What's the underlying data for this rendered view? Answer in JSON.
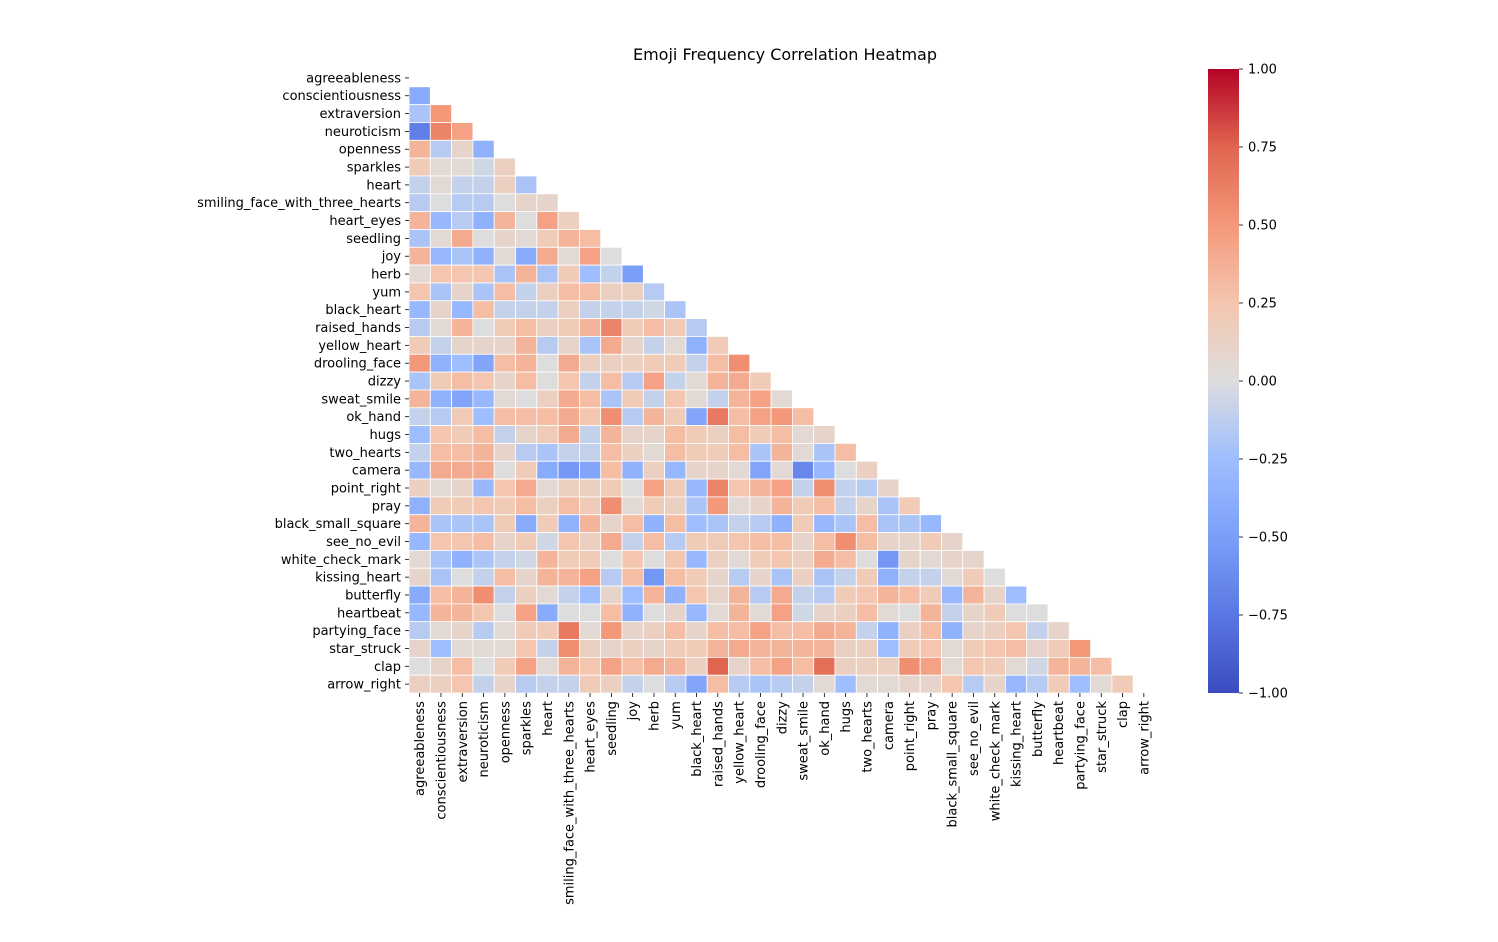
{
  "chart_data": {
    "type": "heatmap",
    "title": "Emoji Frequency Correlation Heatmap",
    "xlabel": "",
    "ylabel": "",
    "variables": [
      "agreeableness",
      "conscientiousness",
      "extraversion",
      "neuroticism",
      "openness",
      "sparkles",
      "heart",
      "smiling_face_with_three_hearts",
      "heart_eyes",
      "seedling",
      "joy",
      "herb",
      "yum",
      "black_heart",
      "raised_hands",
      "yellow_heart",
      "drooling_face",
      "dizzy",
      "sweat_smile",
      "ok_hand",
      "hugs",
      "two_hearts",
      "camera",
      "point_right",
      "pray",
      "black_small_square",
      "see_no_evil",
      "white_check_mark",
      "kissing_heart",
      "butterfly",
      "heartbeat",
      "partying_face",
      "star_struck",
      "clap",
      "arrow_right"
    ],
    "mask": "upper-triangle",
    "lower_triangle_rows": [
      [],
      [
        -0.4
      ],
      [
        -0.2,
        0.5
      ],
      [
        -0.7,
        0.6,
        0.45
      ],
      [
        0.35,
        -0.15,
        0.1,
        -0.35
      ],
      [
        0.2,
        0.05,
        0.05,
        -0.05,
        0.15
      ],
      [
        -0.1,
        0.05,
        -0.1,
        -0.1,
        0.15,
        -0.2
      ],
      [
        -0.15,
        0.0,
        -0.15,
        -0.15,
        0.0,
        0.1,
        0.1
      ],
      [
        0.35,
        -0.3,
        -0.15,
        -0.35,
        0.35,
        0.0,
        0.45,
        0.15
      ],
      [
        -0.2,
        0.05,
        0.4,
        0.0,
        0.1,
        0.05,
        0.2,
        0.35,
        0.3
      ],
      [
        0.35,
        -0.3,
        -0.2,
        -0.35,
        0.05,
        -0.4,
        0.4,
        0.05,
        0.45,
        0.0
      ],
      [
        0.05,
        0.25,
        0.25,
        0.25,
        -0.2,
        0.35,
        -0.2,
        0.2,
        -0.25,
        -0.1,
        -0.5
      ],
      [
        0.25,
        -0.2,
        0.1,
        -0.2,
        0.3,
        -0.1,
        0.15,
        0.3,
        0.3,
        0.15,
        0.15,
        -0.15
      ],
      [
        -0.3,
        0.1,
        -0.3,
        0.3,
        -0.1,
        -0.1,
        -0.1,
        0.15,
        -0.1,
        -0.1,
        -0.1,
        -0.05,
        -0.2
      ],
      [
        -0.15,
        0.05,
        0.35,
        0.0,
        0.2,
        0.3,
        0.15,
        0.2,
        0.35,
        0.6,
        0.2,
        0.3,
        0.2,
        -0.15
      ],
      [
        0.2,
        -0.1,
        0.1,
        0.1,
        0.1,
        0.35,
        -0.15,
        0.1,
        -0.2,
        0.4,
        0.1,
        -0.1,
        0.05,
        -0.35,
        0.2
      ],
      [
        0.5,
        -0.35,
        -0.25,
        -0.45,
        0.3,
        0.35,
        0.0,
        0.4,
        0.15,
        0.15,
        0.15,
        0.2,
        0.2,
        -0.1,
        0.3,
        0.55
      ],
      [
        -0.2,
        0.2,
        0.3,
        0.25,
        0.1,
        0.3,
        0.0,
        0.25,
        -0.1,
        0.3,
        -0.15,
        0.45,
        -0.1,
        0.05,
        0.35,
        0.4,
        0.2
      ],
      [
        0.35,
        -0.35,
        -0.45,
        -0.3,
        0.05,
        0.0,
        0.15,
        0.4,
        0.3,
        -0.2,
        0.2,
        -0.1,
        0.25,
        0.05,
        -0.1,
        0.35,
        0.45,
        0.05
      ],
      [
        -0.1,
        -0.15,
        0.2,
        -0.25,
        0.3,
        0.3,
        0.3,
        0.4,
        0.25,
        0.55,
        -0.15,
        0.35,
        0.2,
        -0.45,
        0.65,
        0.3,
        0.45,
        0.5,
        0.3
      ],
      [
        -0.25,
        0.25,
        0.2,
        0.3,
        -0.1,
        0.1,
        0.2,
        0.4,
        -0.1,
        0.35,
        0.1,
        0.1,
        0.3,
        0.2,
        0.15,
        0.3,
        0.2,
        0.3,
        0.05,
        0.1
      ],
      [
        -0.1,
        0.3,
        0.3,
        0.35,
        0.1,
        -0.15,
        -0.2,
        -0.1,
        -0.1,
        0.3,
        0.15,
        0.05,
        0.3,
        0.2,
        0.2,
        0.3,
        -0.2,
        0.35,
        0.05,
        -0.2,
        0.3
      ],
      [
        -0.3,
        0.4,
        0.4,
        0.4,
        0.0,
        0.2,
        -0.4,
        -0.55,
        -0.45,
        0.3,
        -0.35,
        0.15,
        -0.3,
        0.1,
        0.1,
        0.05,
        -0.45,
        0.05,
        -0.65,
        -0.3,
        0.0,
        0.15
      ],
      [
        0.15,
        0.05,
        0.1,
        -0.3,
        0.25,
        0.4,
        0.05,
        0.15,
        0.15,
        0.2,
        0.0,
        0.45,
        0.2,
        -0.3,
        0.6,
        0.25,
        0.35,
        0.45,
        -0.1,
        0.55,
        -0.1,
        -0.15,
        0.1
      ],
      [
        -0.35,
        0.2,
        0.2,
        0.25,
        0.2,
        0.3,
        0.15,
        0.3,
        0.2,
        0.55,
        0.05,
        0.2,
        0.15,
        -0.2,
        0.5,
        0.05,
        0.1,
        0.35,
        0.2,
        0.3,
        -0.1,
        0.1,
        -0.2,
        0.2
      ],
      [
        0.35,
        -0.2,
        -0.2,
        -0.2,
        0.2,
        -0.4,
        0.2,
        -0.35,
        0.35,
        0.1,
        0.3,
        -0.35,
        0.3,
        -0.25,
        -0.2,
        -0.1,
        -0.15,
        -0.35,
        0.2,
        -0.3,
        -0.2,
        0.3,
        -0.2,
        -0.2,
        -0.3
      ],
      [
        -0.3,
        0.25,
        0.25,
        0.3,
        0.1,
        0.2,
        -0.05,
        0.25,
        0.15,
        0.4,
        -0.1,
        0.3,
        -0.15,
        0.2,
        0.2,
        0.25,
        0.3,
        0.3,
        0.1,
        0.3,
        0.55,
        0.3,
        0.1,
        0.1,
        0.2,
        0.1
      ],
      [
        0.05,
        -0.2,
        -0.35,
        -0.2,
        -0.1,
        -0.05,
        0.35,
        0.2,
        0.2,
        0.0,
        0.25,
        0.0,
        0.25,
        -0.3,
        0.15,
        0.05,
        0.2,
        0.25,
        0.15,
        0.4,
        0.3,
        0.0,
        -0.55,
        0.1,
        0.05,
        0.1,
        0.1
      ],
      [
        0.1,
        -0.2,
        0.0,
        -0.1,
        0.3,
        0.1,
        0.35,
        0.35,
        0.45,
        -0.15,
        0.3,
        -0.55,
        0.3,
        0.2,
        0.1,
        -0.15,
        0.1,
        -0.2,
        0.15,
        -0.2,
        -0.1,
        0.2,
        -0.35,
        -0.1,
        -0.1,
        0.05,
        0.2,
        0.0
      ],
      [
        -0.4,
        0.3,
        0.35,
        0.55,
        -0.1,
        0.15,
        0.05,
        -0.1,
        -0.25,
        0.1,
        -0.25,
        0.35,
        -0.35,
        0.25,
        0.1,
        0.35,
        -0.15,
        0.4,
        -0.1,
        -0.15,
        0.2,
        0.25,
        0.35,
        0.3,
        0.2,
        -0.3,
        0.35,
        0.1,
        -0.25
      ],
      [
        -0.3,
        0.35,
        0.35,
        0.25,
        0.0,
        0.45,
        -0.4,
        0.0,
        0.0,
        0.3,
        -0.35,
        0.0,
        0.1,
        -0.3,
        0.05,
        0.35,
        0.05,
        0.45,
        -0.05,
        0.1,
        0.15,
        0.3,
        0.05,
        0.0,
        0.35,
        -0.1,
        0.1,
        0.2,
        0.0,
        0.0
      ],
      [
        -0.15,
        0.05,
        0.1,
        -0.15,
        0.05,
        0.2,
        0.2,
        0.65,
        0.05,
        0.5,
        0.1,
        0.15,
        0.3,
        0.1,
        0.3,
        0.3,
        0.45,
        0.3,
        0.3,
        0.4,
        0.35,
        -0.1,
        -0.35,
        0.15,
        0.3,
        -0.35,
        0.1,
        0.15,
        0.25,
        -0.1,
        0.1
      ],
      [
        0.1,
        -0.25,
        0.05,
        0.05,
        0.05,
        0.25,
        -0.1,
        0.55,
        0.15,
        0.1,
        0.15,
        0.1,
        0.2,
        0.2,
        0.35,
        0.4,
        0.35,
        0.35,
        0.35,
        0.35,
        0.15,
        0.15,
        -0.25,
        0.2,
        0.25,
        0.05,
        0.2,
        0.25,
        0.3,
        0.1,
        0.2,
        0.5
      ],
      [
        0.0,
        0.1,
        0.3,
        0.0,
        0.2,
        0.45,
        0.05,
        0.35,
        0.25,
        0.45,
        0.3,
        0.4,
        0.35,
        0.15,
        0.75,
        0.1,
        0.3,
        0.45,
        0.3,
        0.7,
        0.15,
        0.15,
        0.15,
        0.55,
        0.45,
        0.05,
        0.25,
        0.2,
        0.05,
        -0.05,
        0.35,
        0.35,
        0.3
      ],
      [
        0.15,
        0.15,
        0.25,
        -0.1,
        0.1,
        -0.15,
        -0.1,
        -0.1,
        0.2,
        0.15,
        -0.1,
        0.0,
        -0.15,
        -0.45,
        0.3,
        -0.15,
        -0.2,
        -0.15,
        -0.1,
        0.05,
        -0.25,
        0.05,
        0.05,
        0.1,
        0.1,
        0.25,
        -0.15,
        0.1,
        -0.3,
        -0.15,
        0.2,
        -0.25,
        0.05,
        0.2
      ]
    ],
    "vmin": -1.0,
    "vmax": 1.0,
    "colormap": "coolwarm",
    "colorbar_ticks": [
      -1.0,
      -0.75,
      -0.5,
      -0.25,
      0.0,
      0.25,
      0.5,
      0.75,
      1.0
    ],
    "colorbar_tick_labels": [
      "−1.00",
      "−0.75",
      "−0.50",
      "−0.25",
      "0.00",
      "0.25",
      "0.50",
      "0.75",
      "1.00"
    ],
    "cell_border_color": "#ffffff"
  }
}
